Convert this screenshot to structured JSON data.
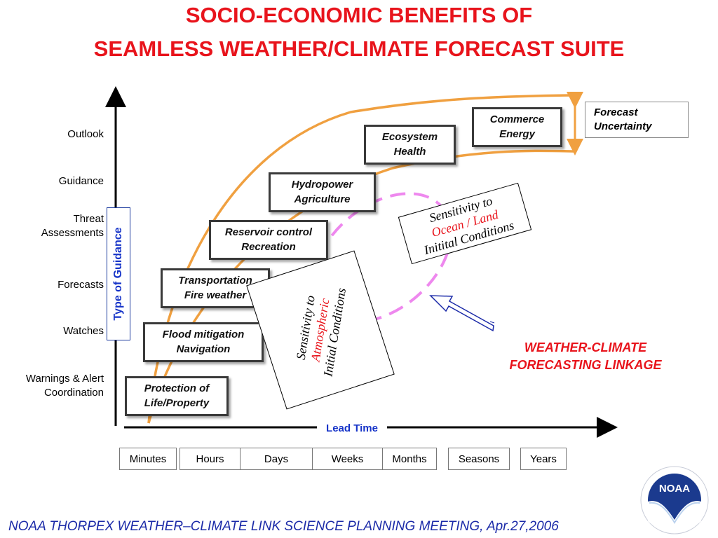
{
  "title": {
    "line1": "SOCIO-ECONOMIC BENEFITS OF",
    "line2": "SEAMLESS WEATHER/CLIMATE FORECAST SUITE"
  },
  "guidance_levels": [
    "Outlook",
    "Guidance",
    "Threat",
    "Assessments",
    "Forecasts",
    "Watches",
    "Warnings & Alert",
    "Coordination"
  ],
  "vertical_axis_label": "Type of Guidance",
  "horizontal_axis_label": "Lead Time",
  "steps": [
    {
      "line1": "Protection of",
      "line2": "Life/Property"
    },
    {
      "line1": "Flood mitigation",
      "line2": "Navigation"
    },
    {
      "line1": "Transportation",
      "line2": "Fire weather"
    },
    {
      "line1": "Reservoir control",
      "line2": "Recreation"
    },
    {
      "line1": "Hydropower",
      "line2": "Agriculture"
    },
    {
      "line1": "Ecosystem",
      "line2": "Health"
    },
    {
      "line1": "Commerce",
      "line2": "Energy"
    }
  ],
  "forecast_uncertainty": {
    "line1": "Forecast",
    "line2": "Uncertainty"
  },
  "sensitivity_ocean": {
    "line1": "Sensitivity to",
    "line2": "Ocean / Land",
    "line3": "Initital Conditions"
  },
  "sensitivity_atmo": {
    "line1": "Sensitivity to",
    "line2": "Atmospheric",
    "line3": "Initial Conditions"
  },
  "linkage": {
    "line1": "WEATHER-CLIMATE",
    "line2": "FORECASTING LINKAGE"
  },
  "time_scales": [
    "Minutes",
    "Hours",
    "Days",
    "Weeks",
    "Months",
    "Seasons",
    "Years"
  ],
  "logo_text": "NOAA",
  "footer": "NOAA THORPEX WEATHER–CLIMATE LINK SCIENCE PLANNING MEETING, Apr.27,2006",
  "colors": {
    "title": "#e8141c",
    "axis_label": "#1533c8",
    "curve": "#f0a040",
    "ellipse": "#ee88ee",
    "footer": "#1b2aa8"
  }
}
